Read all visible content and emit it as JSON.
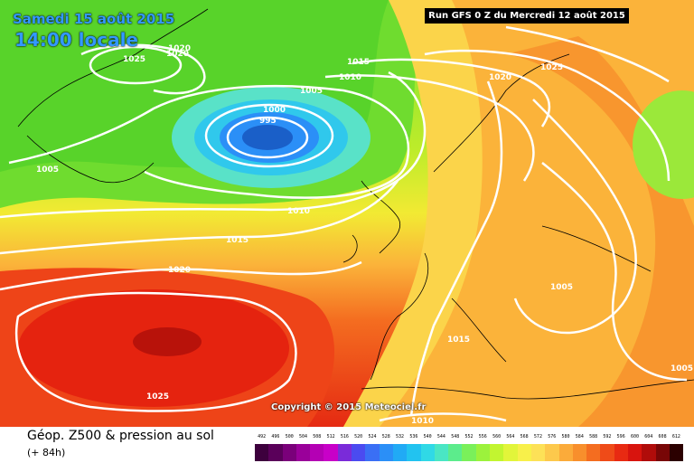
{
  "header": {
    "date": "Samedi 15 août 2015",
    "local_time": "14:00 locale",
    "run": "Run GFS 0 Z du Mercredi 12 août 2015"
  },
  "copyright": "Copyright © 2015 Meteociel.fr",
  "footer": {
    "title": "Géop. Z500 & pression au sol",
    "subtitle": "(+ 84h)"
  },
  "legend": {
    "ticks": [
      "492",
      "496",
      "500",
      "504",
      "508",
      "512",
      "516",
      "520",
      "524",
      "528",
      "532",
      "536",
      "540",
      "544",
      "548",
      "552",
      "556",
      "560",
      "564",
      "568",
      "572",
      "576",
      "580",
      "584",
      "588",
      "592",
      "596",
      "600",
      "604",
      "608",
      "612"
    ],
    "colors": [
      "#3d003d",
      "#5a005a",
      "#7a007a",
      "#9a009a",
      "#b400b4",
      "#c800c8",
      "#7a2bd9",
      "#4b4bf0",
      "#3a6ff5",
      "#2b8ff7",
      "#21aaf5",
      "#22c3f0",
      "#30d9e6",
      "#4ae6c4",
      "#5cec8c",
      "#7af05a",
      "#9cf23c",
      "#c2f530",
      "#e2f53a",
      "#f8f04a",
      "#fde157",
      "#fdc94c",
      "#fbab3a",
      "#f88f2c",
      "#f46d20",
      "#ef4b18",
      "#e82a12",
      "#d8140e",
      "#b00c0a",
      "#780606",
      "#2b0000"
    ]
  },
  "isobars": [
    {
      "id": "iso-995",
      "text": "995"
    },
    {
      "id": "iso-1000",
      "text": "1000"
    },
    {
      "id": "iso-1005-a",
      "text": "1005"
    },
    {
      "id": "iso-1010-a",
      "text": "1010"
    },
    {
      "id": "iso-1015-a",
      "text": "1015"
    },
    {
      "id": "iso-1020-a",
      "text": "1020"
    },
    {
      "id": "iso-1025-a",
      "text": "1025"
    },
    {
      "id": "iso-1020-b",
      "text": "1020"
    },
    {
      "id": "iso-1005-b",
      "text": "1005"
    },
    {
      "id": "iso-1010-b",
      "text": "1010"
    },
    {
      "id": "iso-1015-b",
      "text": "1015"
    },
    {
      "id": "iso-1020-c",
      "text": "1020"
    },
    {
      "id": "iso-1025-b",
      "text": "1025"
    },
    {
      "id": "iso-1020-d",
      "text": "1020"
    },
    {
      "id": "iso-1025-c",
      "text": "1025"
    },
    {
      "id": "iso-1005-c",
      "text": "1005"
    },
    {
      "id": "iso-1015-c",
      "text": "1015"
    },
    {
      "id": "iso-1005-d",
      "text": "1005"
    },
    {
      "id": "iso-1010-c",
      "text": "1010"
    }
  ],
  "colors": {
    "low_core": "#1a5fc8",
    "high_core": "#b00c0a",
    "isobar": "#ffffff",
    "land_outline": "#000000"
  }
}
